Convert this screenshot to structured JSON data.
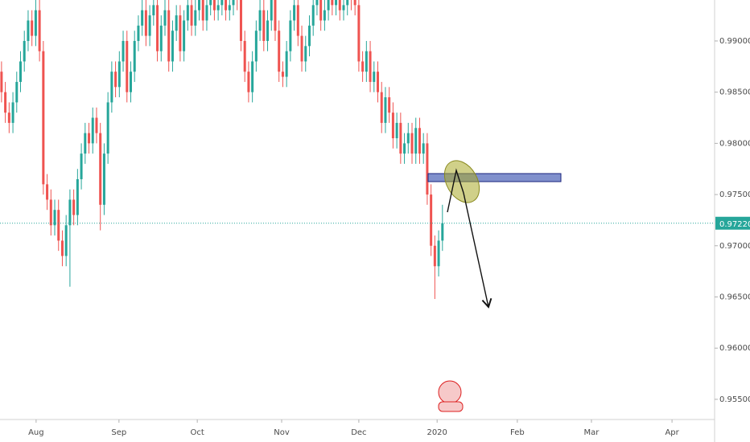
{
  "chart_data": {
    "type": "candlestick",
    "x": [
      0,
      1,
      2,
      3,
      4,
      5,
      6,
      7,
      8,
      9,
      10,
      11,
      12,
      13,
      14,
      15,
      16,
      17,
      18,
      19,
      20,
      21,
      22,
      23,
      24,
      25,
      26,
      27,
      28,
      29,
      30,
      31,
      32,
      33,
      34,
      35,
      36,
      37,
      38,
      39,
      40,
      41,
      42,
      43,
      44,
      45,
      46,
      47,
      48,
      49,
      50,
      51,
      52,
      53,
      54,
      55,
      56,
      57,
      58,
      59,
      60,
      61,
      62,
      63,
      64,
      65,
      66,
      67,
      68,
      69,
      70,
      71,
      72,
      73,
      74,
      75,
      76,
      77,
      78,
      79,
      80,
      81,
      82,
      83,
      84,
      85,
      86,
      87,
      88,
      89,
      90,
      91,
      92,
      93,
      94,
      95,
      96,
      97,
      98,
      99,
      100,
      101,
      102,
      103,
      104,
      105,
      106,
      107,
      108,
      109,
      110,
      111,
      112,
      113,
      114,
      115,
      116
    ],
    "open": [
      0.987,
      0.985,
      0.983,
      0.982,
      0.984,
      0.986,
      0.988,
      0.99,
      0.992,
      0.9905,
      0.993,
      0.989,
      0.976,
      0.9745,
      0.972,
      0.9735,
      0.9705,
      0.969,
      0.972,
      0.9745,
      0.973,
      0.9765,
      0.979,
      0.981,
      0.98,
      0.9825,
      0.981,
      0.974,
      0.979,
      0.984,
      0.987,
      0.9855,
      0.988,
      0.99,
      0.985,
      0.987,
      0.99,
      0.9915,
      0.993,
      0.9905,
      0.9925,
      0.9935,
      0.989,
      0.9915,
      0.993,
      0.988,
      0.991,
      0.9925,
      0.989,
      0.992,
      0.9935,
      0.9915,
      0.993,
      0.994,
      0.992,
      0.9935,
      0.9945,
      0.993,
      0.9935,
      0.994,
      0.993,
      0.9935,
      0.9945,
      0.994,
      0.99,
      0.987,
      0.985,
      0.988,
      0.991,
      0.993,
      0.99,
      0.992,
      0.9945,
      0.991,
      0.987,
      0.9865,
      0.989,
      0.992,
      0.9935,
      0.9905,
      0.988,
      0.9895,
      0.9915,
      0.9935,
      0.994,
      0.992,
      0.993,
      0.9945,
      0.9935,
      0.994,
      0.993,
      0.9935,
      0.9945,
      0.994,
      0.9935,
      0.988,
      0.987,
      0.989,
      0.986,
      0.987,
      0.985,
      0.982,
      0.9845,
      0.983,
      0.9805,
      0.982,
      0.979,
      0.98,
      0.981,
      0.979,
      0.9815,
      0.979,
      0.98,
      0.975,
      0.97,
      0.968,
      0.9705
    ],
    "high": [
      0.988,
      0.986,
      0.984,
      0.985,
      0.987,
      0.989,
      0.991,
      0.993,
      0.993,
      0.994,
      0.994,
      0.99,
      0.977,
      0.9755,
      0.9745,
      0.9745,
      0.9715,
      0.973,
      0.9755,
      0.9755,
      0.9775,
      0.98,
      0.982,
      0.982,
      0.9835,
      0.9835,
      0.982,
      0.98,
      0.985,
      0.988,
      0.988,
      0.989,
      0.991,
      0.991,
      0.988,
      0.991,
      0.9925,
      0.994,
      0.994,
      0.9935,
      0.9945,
      0.9945,
      0.9925,
      0.994,
      0.994,
      0.992,
      0.9935,
      0.9935,
      0.993,
      0.9945,
      0.9945,
      0.994,
      0.995,
      0.995,
      0.9945,
      0.9955,
      0.9955,
      0.9945,
      0.995,
      0.995,
      0.9945,
      0.9955,
      0.9955,
      0.995,
      0.991,
      0.988,
      0.989,
      0.992,
      0.994,
      0.994,
      0.993,
      0.9955,
      0.9955,
      0.992,
      0.988,
      0.99,
      0.993,
      0.9945,
      0.9945,
      0.9915,
      0.9905,
      0.9925,
      0.9945,
      0.995,
      0.995,
      0.994,
      0.9955,
      0.9955,
      0.995,
      0.995,
      0.9945,
      0.9955,
      0.9955,
      0.995,
      0.9945,
      0.989,
      0.99,
      0.99,
      0.988,
      0.988,
      0.986,
      0.9855,
      0.9855,
      0.984,
      0.983,
      0.983,
      0.981,
      0.982,
      0.982,
      0.9825,
      0.9825,
      0.981,
      0.981,
      0.976,
      0.971,
      0.9715,
      0.974
    ],
    "low": [
      0.984,
      0.982,
      0.981,
      0.981,
      0.983,
      0.985,
      0.987,
      0.989,
      0.9895,
      0.9895,
      0.988,
      0.975,
      0.9735,
      0.971,
      0.971,
      0.9695,
      0.968,
      0.968,
      0.966,
      0.972,
      0.972,
      0.9755,
      0.978,
      0.979,
      0.979,
      0.98,
      0.9715,
      0.973,
      0.978,
      0.983,
      0.9845,
      0.9845,
      0.987,
      0.984,
      0.984,
      0.986,
      0.989,
      0.9905,
      0.9895,
      0.9895,
      0.9915,
      0.988,
      0.988,
      0.9905,
      0.987,
      0.987,
      0.99,
      0.988,
      0.988,
      0.991,
      0.9905,
      0.9905,
      0.992,
      0.991,
      0.991,
      0.9925,
      0.992,
      0.992,
      0.9925,
      0.992,
      0.992,
      0.9925,
      0.993,
      0.989,
      0.986,
      0.984,
      0.984,
      0.987,
      0.99,
      0.989,
      0.989,
      0.991,
      0.99,
      0.986,
      0.9855,
      0.9855,
      0.988,
      0.991,
      0.9895,
      0.987,
      0.987,
      0.9885,
      0.9905,
      0.9925,
      0.991,
      0.991,
      0.992,
      0.9925,
      0.9925,
      0.992,
      0.992,
      0.9925,
      0.993,
      0.9925,
      0.987,
      0.986,
      0.986,
      0.985,
      0.985,
      0.984,
      0.981,
      0.981,
      0.982,
      0.9795,
      0.9795,
      0.978,
      0.978,
      0.979,
      0.978,
      0.978,
      0.978,
      0.978,
      0.974,
      0.969,
      0.9648,
      0.967,
      0.9695
    ],
    "close": [
      0.985,
      0.983,
      0.982,
      0.984,
      0.986,
      0.988,
      0.99,
      0.992,
      0.9905,
      0.993,
      0.989,
      0.976,
      0.9745,
      0.972,
      0.9735,
      0.9705,
      0.969,
      0.972,
      0.9745,
      0.973,
      0.9765,
      0.979,
      0.981,
      0.98,
      0.9825,
      0.981,
      0.974,
      0.979,
      0.984,
      0.987,
      0.9855,
      0.988,
      0.99,
      0.985,
      0.987,
      0.99,
      0.9915,
      0.993,
      0.9905,
      0.9925,
      0.9935,
      0.989,
      0.9915,
      0.993,
      0.988,
      0.991,
      0.9925,
      0.989,
      0.992,
      0.9935,
      0.9915,
      0.993,
      0.994,
      0.992,
      0.9935,
      0.9945,
      0.993,
      0.9935,
      0.994,
      0.993,
      0.9935,
      0.9945,
      0.994,
      0.99,
      0.987,
      0.985,
      0.988,
      0.991,
      0.993,
      0.99,
      0.992,
      0.9945,
      0.991,
      0.987,
      0.9865,
      0.989,
      0.992,
      0.9935,
      0.9905,
      0.988,
      0.9895,
      0.9915,
      0.9935,
      0.994,
      0.992,
      0.993,
      0.9945,
      0.9935,
      0.994,
      0.993,
      0.9935,
      0.9945,
      0.994,
      0.9935,
      0.988,
      0.987,
      0.989,
      0.986,
      0.987,
      0.985,
      0.982,
      0.9845,
      0.983,
      0.9805,
      0.982,
      0.979,
      0.98,
      0.981,
      0.979,
      0.9815,
      0.979,
      0.98,
      0.975,
      0.97,
      0.968,
      0.9705,
      0.9722
    ],
    "up_color": "#26a69a",
    "down_color": "#ef5350",
    "xlim": [
      -0.4,
      187.6
    ],
    "xticks": [
      {
        "value": 9.1,
        "label": "Aug"
      },
      {
        "value": 30.9,
        "label": "Sep"
      },
      {
        "value": 51.5,
        "label": "Oct"
      },
      {
        "value": 73.7,
        "label": "Nov"
      },
      {
        "value": 94.0,
        "label": "Dec"
      },
      {
        "value": 114.6,
        "label": "2020"
      },
      {
        "value": 135.7,
        "label": "Feb"
      },
      {
        "value": 155.2,
        "label": "Mar"
      },
      {
        "value": 176.4,
        "label": "Apr"
      }
    ],
    "ylim": [
      0.95303,
      0.994
    ],
    "yticks": [
      {
        "value": 0.955,
        "label": "0.95500"
      },
      {
        "value": 0.96,
        "label": "0.96000"
      },
      {
        "value": 0.965,
        "label": "0.96500"
      },
      {
        "value": 0.97,
        "label": "0.97000"
      },
      {
        "value": 0.975,
        "label": "0.97500"
      },
      {
        "value": 0.98,
        "label": "0.98000"
      },
      {
        "value": 0.985,
        "label": "0.98500"
      },
      {
        "value": 0.99,
        "label": "0.99000"
      }
    ],
    "last_price": {
      "value": 0.9722,
      "label": "0.97220",
      "color": "#26a69a"
    }
  }
}
